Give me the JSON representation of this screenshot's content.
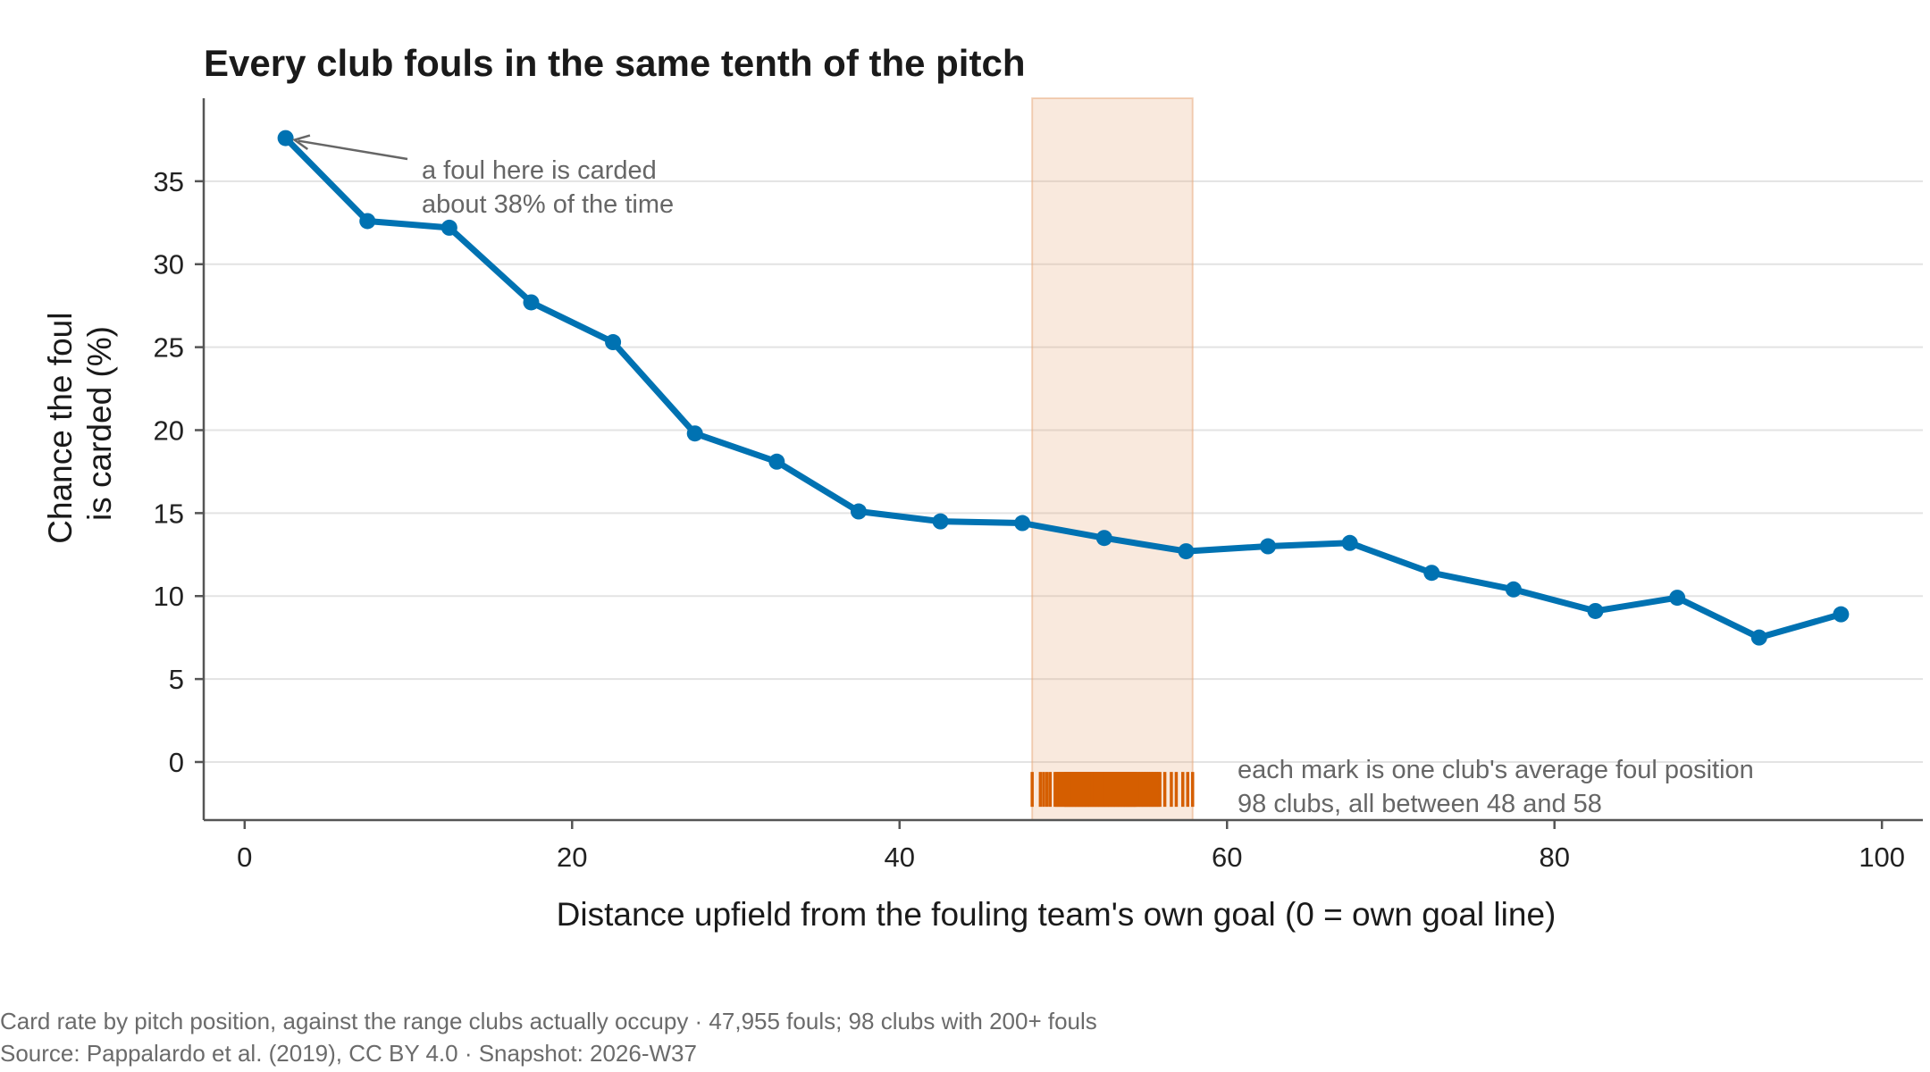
{
  "chart_data": {
    "type": "line",
    "title": "Every club fouls in the same tenth of the pitch",
    "xlabel": "Distance upfield from the fouling team's own goal (0 = own goal line)",
    "ylabel_lines": [
      "Chance the foul",
      "is carded (%)"
    ],
    "xlim": [
      -2.5,
      102.5
    ],
    "ylim": [
      -3.5,
      40
    ],
    "xticks": [
      0,
      20,
      40,
      60,
      80,
      100
    ],
    "yticks": [
      0,
      5,
      10,
      15,
      20,
      25,
      30,
      35
    ],
    "grid": "horizontal",
    "series": [
      {
        "x": [
          2.5,
          7.5,
          12.5,
          17.5,
          22.5,
          27.5,
          32.5,
          37.5,
          42.5,
          47.5,
          52.5,
          57.5,
          62.5,
          67.5,
          72.5,
          77.5,
          82.5,
          87.5,
          92.5,
          97.5
        ],
        "y": [
          37.6,
          32.6,
          32.2,
          27.7,
          25.3,
          19.8,
          18.1,
          15.1,
          14.5,
          14.4,
          13.5,
          12.7,
          13.0,
          13.2,
          11.4,
          10.4,
          9.1,
          9.9,
          7.5,
          8.9
        ],
        "color": "#0072b2"
      }
    ],
    "highlight_band": {
      "x": [
        48.1,
        57.9
      ],
      "color": "#e8a878"
    },
    "club_positions": {
      "color": "#d55e00",
      "values": [
        48.1,
        48.6,
        48.8,
        49.0,
        49.2,
        49.5,
        49.7,
        49.8,
        49.9,
        50.0,
        50.1,
        50.2,
        50.3,
        50.4,
        50.5,
        50.6,
        50.7,
        50.8,
        50.9,
        51.0,
        51.1,
        51.2,
        51.3,
        51.4,
        51.5,
        51.6,
        51.7,
        51.8,
        51.9,
        52.0,
        52.1,
        52.2,
        52.3,
        52.4,
        52.5,
        52.6,
        52.7,
        52.8,
        52.9,
        53.0,
        53.1,
        53.2,
        53.3,
        53.4,
        53.5,
        53.6,
        53.7,
        53.8,
        53.9,
        54.0,
        54.1,
        54.2,
        54.3,
        54.4,
        54.5,
        54.6,
        54.7,
        54.8,
        54.9,
        55.0,
        55.1,
        55.2,
        55.3,
        55.4,
        55.5,
        55.6,
        55.7,
        55.8,
        55.9,
        56.2,
        56.6,
        56.9,
        57.3,
        57.6,
        57.9,
        49.6,
        50.15,
        50.35,
        50.55,
        50.75,
        50.95,
        51.15,
        51.35,
        51.55,
        51.75,
        51.95,
        52.15,
        52.35,
        52.55,
        52.75,
        52.95,
        53.15,
        53.35,
        53.55,
        53.75,
        53.95,
        54.15,
        54.35
      ]
    },
    "annotations": [
      {
        "lines": [
          "a foul here is carded",
          "about 38% of the time"
        ],
        "points_to": {
          "x": 2.5,
          "y": 37.6
        }
      },
      {
        "lines": [
          "each mark is one club's average foul position",
          "98 clubs, all between 48 and 58"
        ]
      }
    ],
    "caption_lines": [
      "Card rate by pitch position, against the range clubs actually occupy  ·  47,955 fouls; 98 clubs with 200+ fouls",
      "Source: Pappalardo et al. (2019), CC BY 4.0  ·  Snapshot: 2026-W37"
    ]
  }
}
